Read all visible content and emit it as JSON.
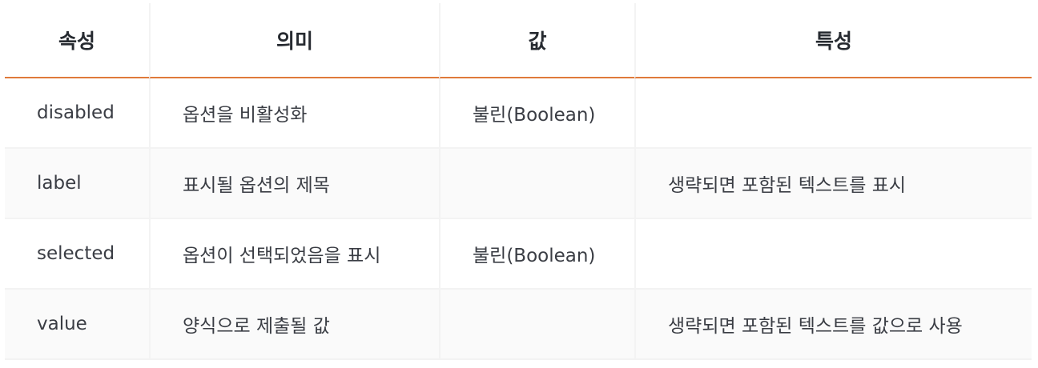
{
  "table": {
    "headers": [
      "속성",
      "의미",
      "값",
      "특성"
    ],
    "rows": [
      {
        "attribute": "disabled",
        "meaning": "옵션을 비활성화",
        "value": "불린(Boolean)",
        "trait": ""
      },
      {
        "attribute": "label",
        "meaning": "표시될 옵션의 제목",
        "value": "",
        "trait": "생략되면 포함된 텍스트를 표시"
      },
      {
        "attribute": "selected",
        "meaning": "옵션이 선택되었음을 표시",
        "value": "불린(Boolean)",
        "trait": ""
      },
      {
        "attribute": "value",
        "meaning": "양식으로 제출될 값",
        "value": "",
        "trait": "생략되면 포함된 텍스트를 값으로 사용"
      }
    ]
  },
  "colors": {
    "header_rule": "#e07a3a",
    "stripe": "#fafafa",
    "divider": "#f3f3f3"
  }
}
